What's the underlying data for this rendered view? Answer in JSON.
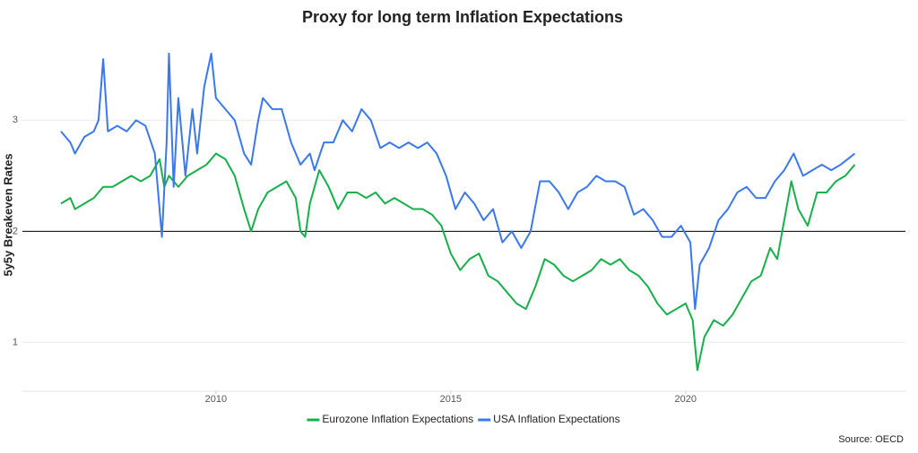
{
  "chart_data": {
    "type": "line",
    "title": "Proxy for long term Inflation Expectations",
    "y_label": "5y5y Breakeven Rates",
    "caption": "Source: OECD",
    "xlim": [
      2005.88,
      2024.68
    ],
    "ylim": [
      0.56,
      3.72
    ],
    "xticks": [
      2010,
      2015,
      2020
    ],
    "yticks": [
      1,
      2,
      3
    ],
    "grid": true,
    "reference_line": 2,
    "legend": "bottom",
    "series": [
      {
        "name": "Eurozone Inflation Expectations",
        "color": "#15b04a",
        "x": [
          2006.7,
          2006.9,
          2007.0,
          2007.2,
          2007.4,
          2007.6,
          2007.8,
          2008.0,
          2008.2,
          2008.4,
          2008.6,
          2008.8,
          2008.9,
          2009.0,
          2009.2,
          2009.4,
          2009.6,
          2009.8,
          2010.0,
          2010.2,
          2010.4,
          2010.6,
          2010.75,
          2010.9,
          2011.1,
          2011.3,
          2011.5,
          2011.7,
          2011.8,
          2011.9,
          2012.0,
          2012.2,
          2012.4,
          2012.6,
          2012.8,
          2013.0,
          2013.2,
          2013.4,
          2013.6,
          2013.8,
          2014.0,
          2014.2,
          2014.4,
          2014.6,
          2014.8,
          2015.0,
          2015.2,
          2015.4,
          2015.6,
          2015.8,
          2016.0,
          2016.2,
          2016.4,
          2016.6,
          2016.8,
          2017.0,
          2017.2,
          2017.4,
          2017.6,
          2017.8,
          2018.0,
          2018.2,
          2018.4,
          2018.6,
          2018.8,
          2019.0,
          2019.2,
          2019.4,
          2019.6,
          2019.8,
          2020.0,
          2020.15,
          2020.25,
          2020.4,
          2020.6,
          2020.8,
          2021.0,
          2021.2,
          2021.4,
          2021.6,
          2021.8,
          2021.95,
          2022.1,
          2022.25,
          2022.4,
          2022.6,
          2022.8,
          2023.0,
          2023.2,
          2023.4,
          2023.6
        ],
        "values": [
          2.25,
          2.3,
          2.2,
          2.25,
          2.3,
          2.4,
          2.4,
          2.45,
          2.5,
          2.45,
          2.5,
          2.65,
          2.4,
          2.5,
          2.4,
          2.5,
          2.55,
          2.6,
          2.7,
          2.65,
          2.5,
          2.2,
          2.0,
          2.2,
          2.35,
          2.4,
          2.45,
          2.3,
          2.0,
          1.95,
          2.25,
          2.55,
          2.4,
          2.2,
          2.35,
          2.35,
          2.3,
          2.35,
          2.25,
          2.3,
          2.25,
          2.2,
          2.2,
          2.15,
          2.05,
          1.8,
          1.65,
          1.75,
          1.8,
          1.6,
          1.55,
          1.45,
          1.35,
          1.3,
          1.5,
          1.75,
          1.7,
          1.6,
          1.55,
          1.6,
          1.65,
          1.75,
          1.7,
          1.75,
          1.65,
          1.6,
          1.5,
          1.35,
          1.25,
          1.3,
          1.35,
          1.2,
          0.75,
          1.05,
          1.2,
          1.15,
          1.25,
          1.4,
          1.55,
          1.6,
          1.85,
          1.75,
          2.1,
          2.45,
          2.2,
          2.05,
          2.35,
          2.35,
          2.45,
          2.5,
          2.6
        ]
      },
      {
        "name": "USA Inflation Expectations",
        "color": "#3a78ee",
        "x": [
          2006.7,
          2006.9,
          2007.0,
          2007.2,
          2007.4,
          2007.5,
          2007.6,
          2007.7,
          2007.9,
          2008.1,
          2008.3,
          2008.5,
          2008.7,
          2008.8,
          2008.85,
          2008.95,
          2009.0,
          2009.1,
          2009.2,
          2009.35,
          2009.5,
          2009.6,
          2009.75,
          2009.9,
          2010.0,
          2010.2,
          2010.4,
          2010.6,
          2010.75,
          2010.9,
          2011.0,
          2011.2,
          2011.4,
          2011.6,
          2011.8,
          2012.0,
          2012.1,
          2012.3,
          2012.5,
          2012.7,
          2012.9,
          2013.1,
          2013.3,
          2013.5,
          2013.7,
          2013.9,
          2014.1,
          2014.3,
          2014.5,
          2014.7,
          2014.9,
          2015.1,
          2015.3,
          2015.5,
          2015.7,
          2015.9,
          2016.1,
          2016.3,
          2016.5,
          2016.7,
          2016.9,
          2017.1,
          2017.3,
          2017.5,
          2017.7,
          2017.9,
          2018.1,
          2018.3,
          2018.5,
          2018.7,
          2018.9,
          2019.1,
          2019.3,
          2019.5,
          2019.7,
          2019.9,
          2020.1,
          2020.2,
          2020.3,
          2020.5,
          2020.7,
          2020.9,
          2021.1,
          2021.3,
          2021.5,
          2021.7,
          2021.9,
          2022.1,
          2022.3,
          2022.5,
          2022.7,
          2022.9,
          2023.1,
          2023.3,
          2023.6
        ],
        "values": [
          2.9,
          2.8,
          2.7,
          2.85,
          2.9,
          3.0,
          3.55,
          2.9,
          2.95,
          2.9,
          3.0,
          2.95,
          2.7,
          2.2,
          1.95,
          2.8,
          3.6,
          2.4,
          3.2,
          2.5,
          3.1,
          2.7,
          3.3,
          3.6,
          3.2,
          3.1,
          3.0,
          2.7,
          2.6,
          3.0,
          3.2,
          3.1,
          3.1,
          2.8,
          2.6,
          2.7,
          2.55,
          2.8,
          2.8,
          3.0,
          2.9,
          3.1,
          3.0,
          2.75,
          2.8,
          2.75,
          2.8,
          2.75,
          2.8,
          2.7,
          2.5,
          2.2,
          2.35,
          2.25,
          2.1,
          2.2,
          1.9,
          2.0,
          1.85,
          2.0,
          2.45,
          2.45,
          2.35,
          2.2,
          2.35,
          2.4,
          2.5,
          2.45,
          2.45,
          2.4,
          2.15,
          2.2,
          2.1,
          1.95,
          1.95,
          2.05,
          1.9,
          1.3,
          1.7,
          1.85,
          2.1,
          2.2,
          2.35,
          2.4,
          2.3,
          2.3,
          2.45,
          2.55,
          2.7,
          2.5,
          2.55,
          2.6,
          2.55,
          2.6,
          2.7
        ]
      }
    ]
  }
}
